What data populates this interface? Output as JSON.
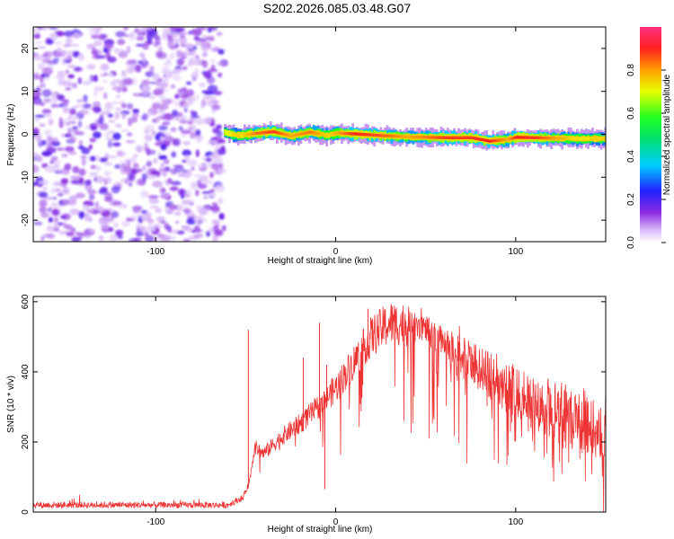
{
  "title": "S202.2026.085.03.48.G07",
  "chart_data": [
    {
      "type": "heatmap",
      "title": "S202.2026.085.03.48.G07",
      "xlabel": "Height of straight line (km)",
      "ylabel": "Frequency (Hz)",
      "xlim": [
        -168,
        150
      ],
      "ylim": [
        -25,
        25
      ],
      "xticks": [
        -100,
        0,
        100
      ],
      "yticks": [
        -20,
        -10,
        0,
        10,
        20
      ],
      "colorbar": {
        "label": "Normalized spectral amplitude",
        "range": [
          0.0,
          1.0
        ],
        "ticks": [
          0.0,
          0.2,
          0.4,
          0.6,
          0.8
        ]
      },
      "noise_region_x": [
        -168,
        -62
      ],
      "signal_trace": {
        "x": [
          -62,
          -55,
          -45,
          -35,
          -25,
          -15,
          -5,
          0,
          10,
          25,
          40,
          60,
          75,
          85,
          95,
          100,
          110,
          130,
          150
        ],
        "freq_hz": [
          0.5,
          -0.3,
          0.2,
          0.6,
          -0.4,
          0.5,
          -0.2,
          0.3,
          0.1,
          -0.3,
          -0.6,
          -0.8,
          -0.8,
          -1.6,
          -1.2,
          -0.7,
          -0.8,
          -1.0,
          -1.0
        ],
        "amplitude": [
          0.3,
          0.5,
          0.8,
          0.9,
          0.7,
          0.8,
          0.6,
          0.7,
          0.95,
          0.85,
          0.7,
          0.9,
          0.9,
          0.95,
          0.7,
          0.95,
          0.9,
          0.6,
          0.5
        ]
      }
    },
    {
      "type": "line",
      "xlabel": "Height of straight line (km)",
      "ylabel": "SNR (10 * v/v)",
      "xlim": [
        -168,
        150
      ],
      "ylim": [
        0,
        615
      ],
      "xticks": [
        -100,
        0,
        100
      ],
      "yticks": [
        0,
        200,
        400,
        600
      ],
      "series": [
        {
          "name": "SNR",
          "color": "#ee3333",
          "envelope_x": [
            -168,
            -60,
            -52,
            -48,
            -45,
            -40,
            -30,
            -20,
            -10,
            0,
            10,
            20,
            30,
            40,
            50,
            60,
            70,
            80,
            90,
            100,
            110,
            120,
            130,
            140,
            150
          ],
          "envelope_y": [
            20,
            20,
            40,
            90,
            200,
            180,
            230,
            270,
            320,
            380,
            460,
            540,
            580,
            575,
            560,
            530,
            500,
            480,
            450,
            420,
            400,
            380,
            360,
            340,
            330
          ],
          "spikes": [
            {
              "x": -48.5,
              "y": 520
            },
            {
              "x": -18,
              "y": 440
            },
            {
              "x": -9,
              "y": 540
            },
            {
              "x": -5,
              "y": 420
            },
            {
              "x": -6,
              "y": 65
            },
            {
              "x": 18,
              "y": 580
            }
          ]
        }
      ]
    }
  ]
}
